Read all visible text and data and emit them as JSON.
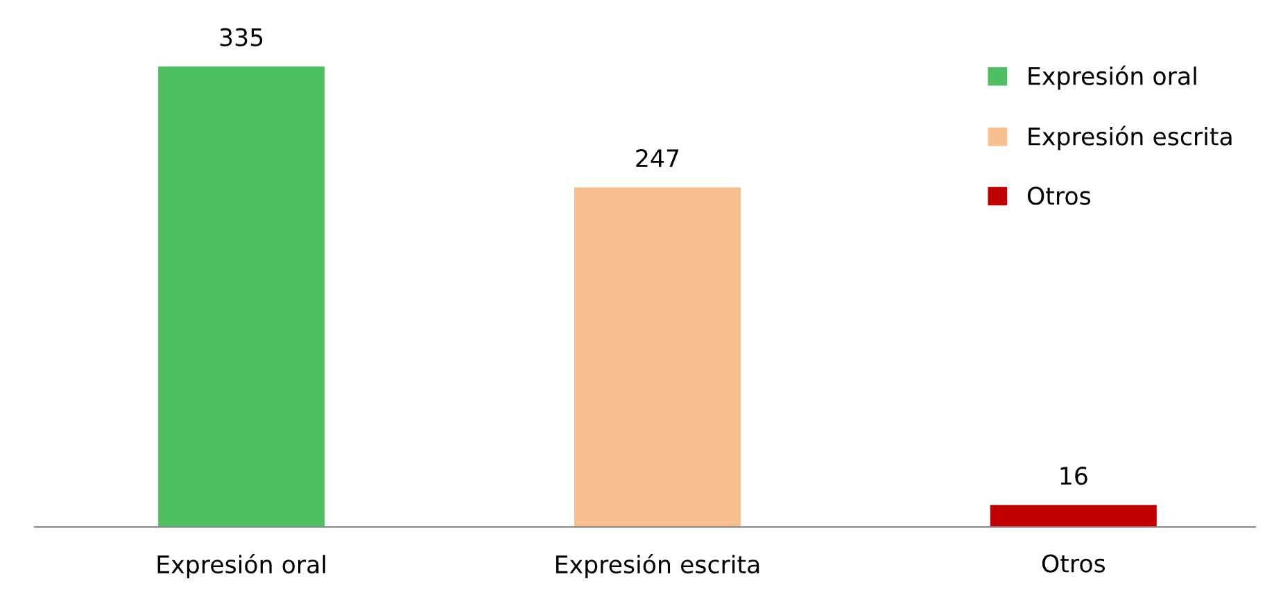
{
  "chart_data": {
    "type": "bar",
    "categories": [
      "Expresión oral",
      "Expresión escrita",
      "Otros"
    ],
    "series": [
      {
        "name": "Expresión oral",
        "color": "#4fc061",
        "values": [
          335,
          null,
          null
        ]
      },
      {
        "name": "Expresión escrita",
        "color": "#f8c08f",
        "values": [
          null,
          247,
          null
        ]
      },
      {
        "name": "Otros",
        "color": "#c00000",
        "values": [
          null,
          null,
          16
        ]
      }
    ],
    "data_labels": true,
    "legend": "right",
    "grid": false
  }
}
